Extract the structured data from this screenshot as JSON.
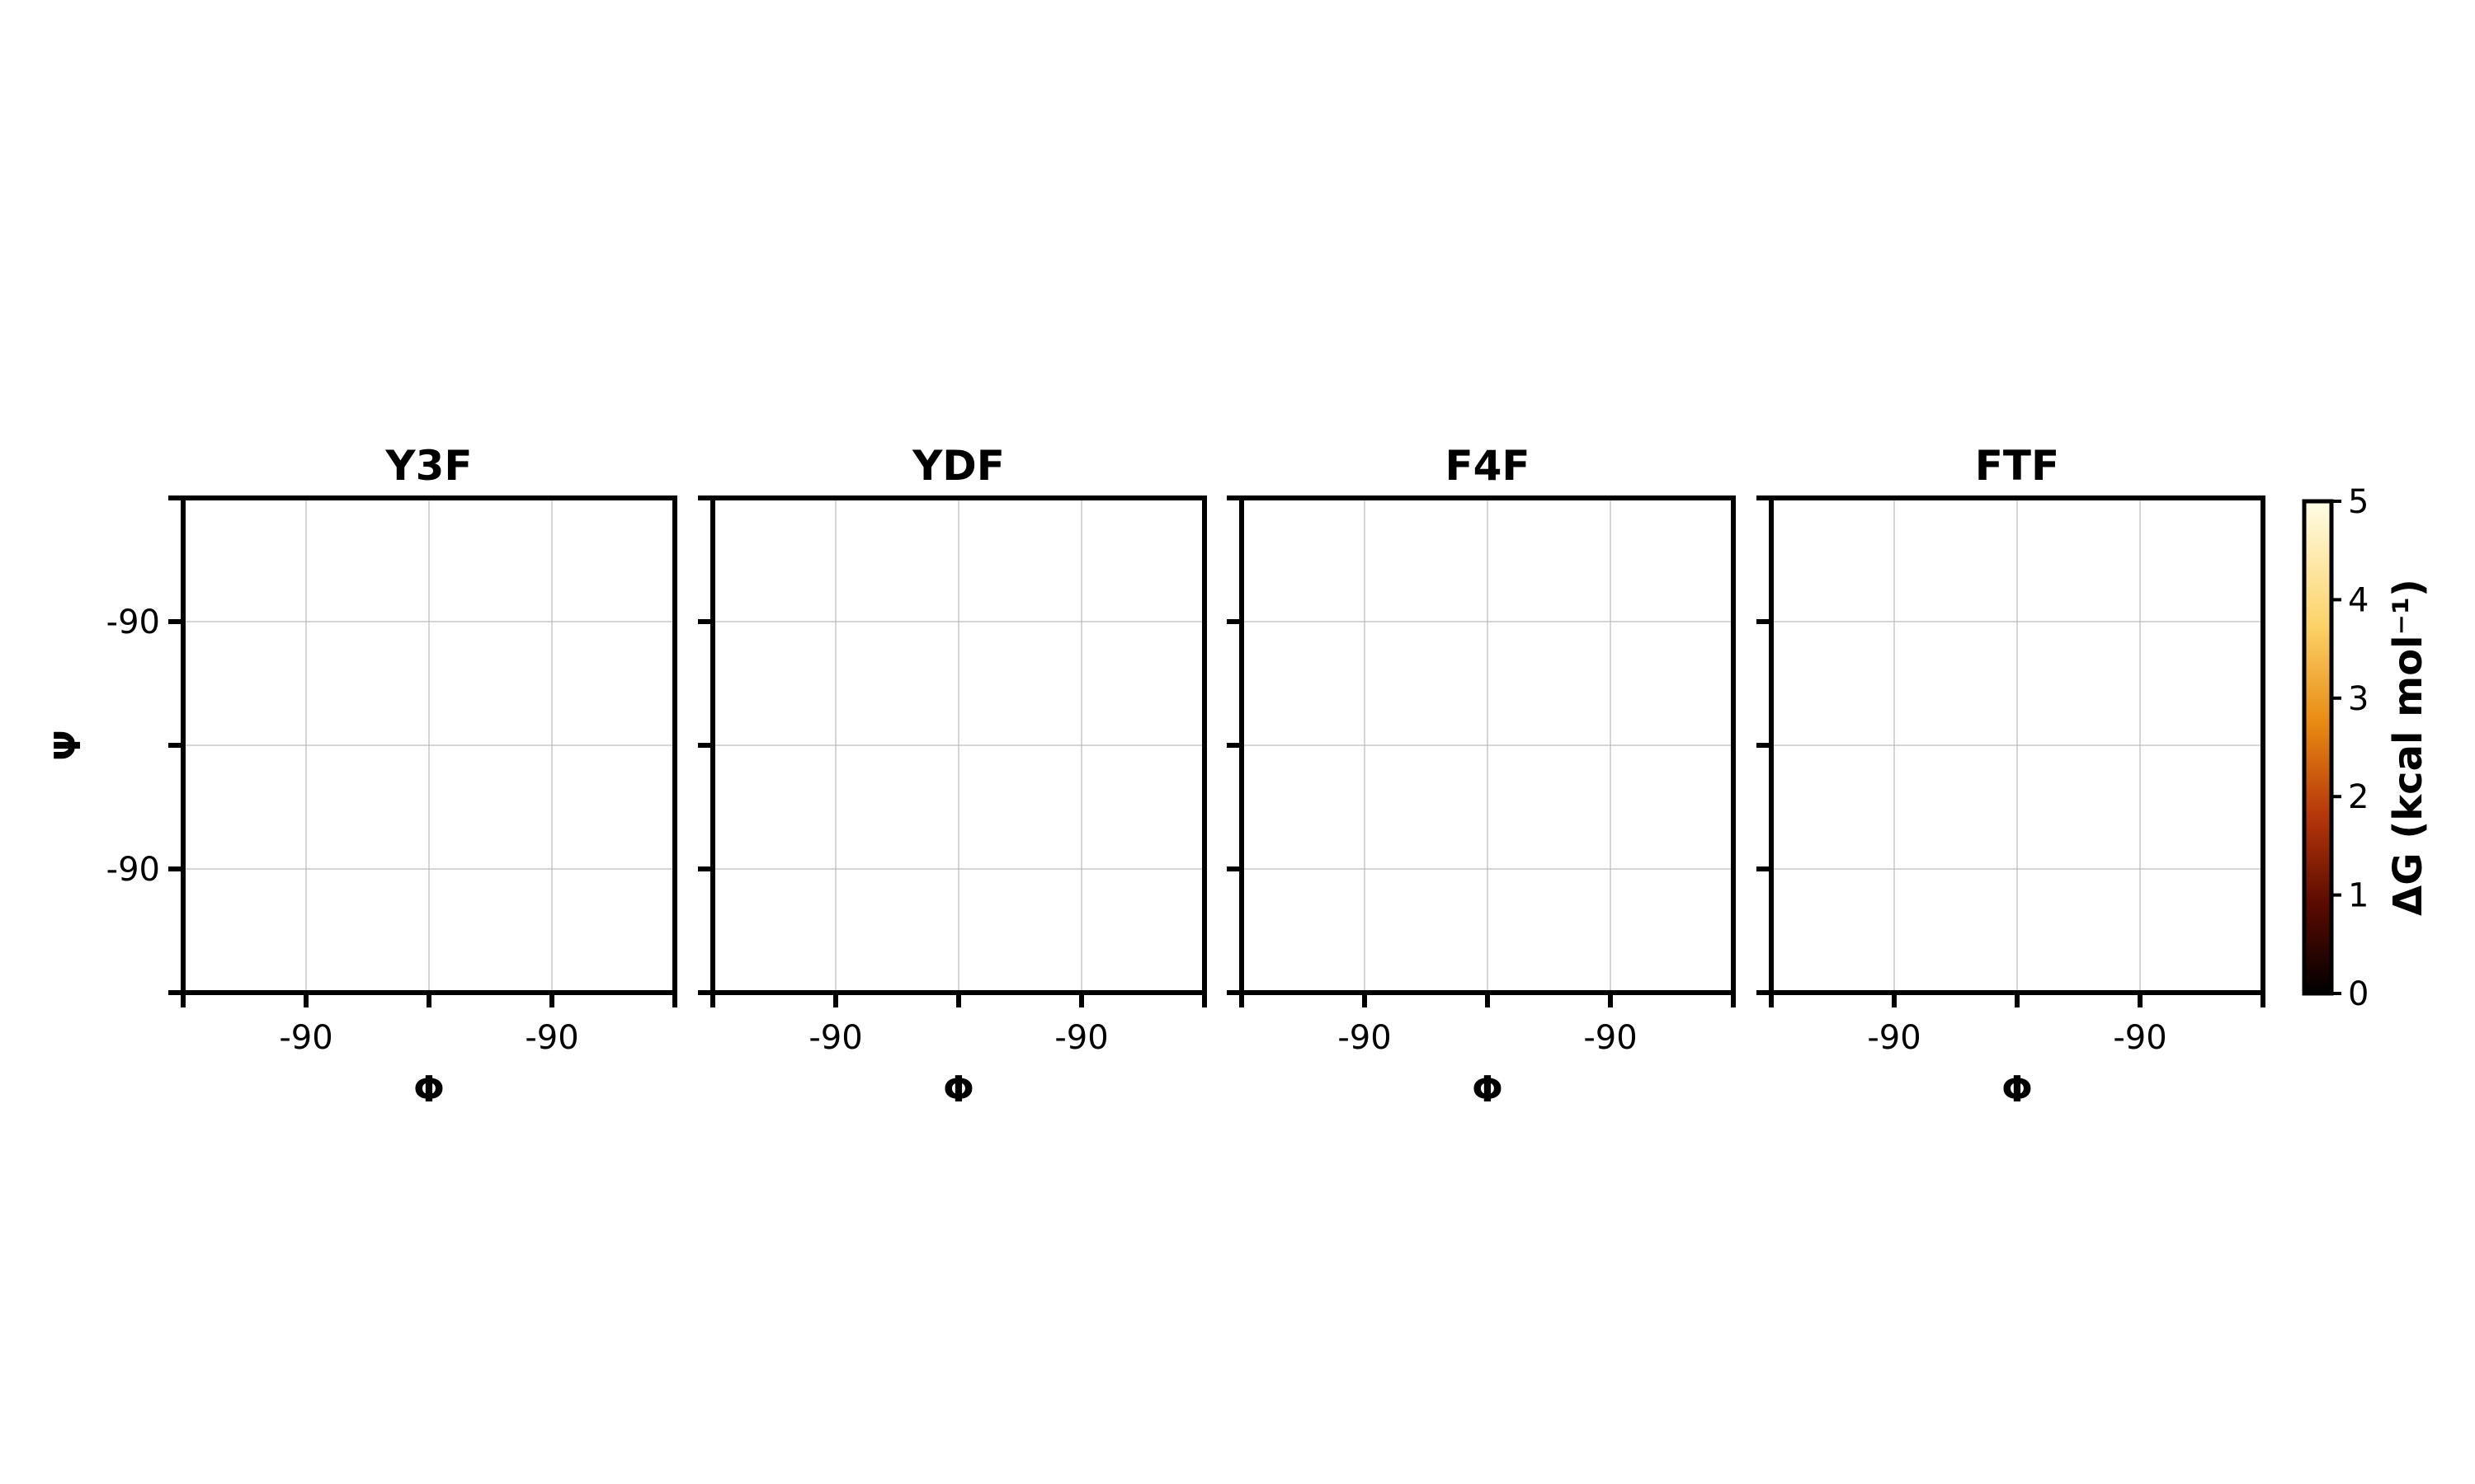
{
  "chart_data": {
    "type": "heatmap",
    "subtype": "ramachandran free-energy landscape with contours",
    "panels": [
      {
        "title": "Y3F",
        "xlabel": "Φ",
        "ylabel": "Ψ",
        "xticks": [
          "-90",
          "-90"
        ],
        "yticks": [
          "-90",
          "-90"
        ]
      },
      {
        "title": "YDF",
        "xlabel": "Φ",
        "ylabel": "",
        "xticks": [
          "-90",
          "-90"
        ],
        "yticks": []
      },
      {
        "title": "F4F",
        "xlabel": "Φ",
        "ylabel": "",
        "xticks": [
          "-90",
          "-90"
        ],
        "yticks": []
      },
      {
        "title": "FTF",
        "xlabel": "Φ",
        "ylabel": "",
        "xticks": [
          "-90",
          "-90"
        ],
        "yticks": []
      }
    ],
    "colorbar": {
      "label": "ΔG (kcal mol⁻¹)",
      "range": [
        0,
        5
      ],
      "ticks": [
        "0",
        "1",
        "2",
        "3",
        "4",
        "5"
      ],
      "colormap": "afmhot",
      "stops": [
        "#000000",
        "#5a0a00",
        "#b5360a",
        "#e88a12",
        "#fcd36a",
        "#fffde6"
      ]
    },
    "contour_levels": [
      1,
      2,
      3,
      4,
      5
    ]
  }
}
